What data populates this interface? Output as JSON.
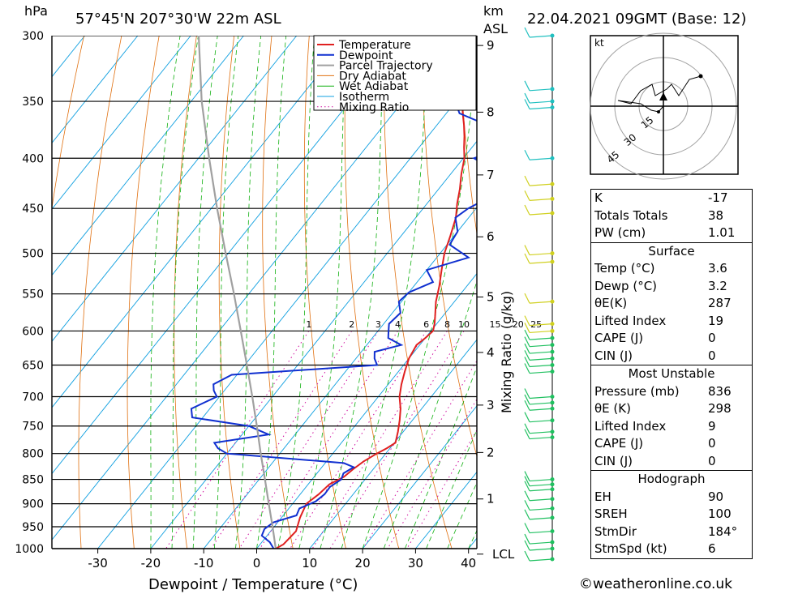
{
  "header": {
    "location": "57°45'N 207°30'W 22m ASL",
    "datetime": "22.04.2021 09GMT (Base: 12)",
    "hpa_label": "hPa",
    "km_label": "km",
    "asl_label": "ASL"
  },
  "credit": "©weatheronline.co.uk",
  "colors": {
    "temperature": "#e02020",
    "dewpoint": "#1030d0",
    "parcel": "#a0a0a0",
    "dry_adiabat": "#e07010",
    "wet_adiabat": "#10b010",
    "isotherm": "#10a0e0",
    "mixing_ratio": "#d010a0"
  },
  "chart_data": {
    "type": "line",
    "title": "",
    "xlabel": "Dewpoint / Temperature (°C)",
    "ylabel": "hPa",
    "y2label": "Mixing Ratio (g/kg)",
    "x_ticks": [
      -30,
      -20,
      -10,
      0,
      10,
      20,
      30,
      40
    ],
    "pressure_ticks": [
      300,
      350,
      400,
      450,
      500,
      550,
      600,
      650,
      700,
      750,
      800,
      850,
      900,
      950,
      1000
    ],
    "km_ticks": [
      "9",
      "8",
      "7",
      "6",
      "5",
      "4",
      "3",
      "2",
      "1",
      "LCL"
    ],
    "mixing_ratio_labels": [
      "1",
      "2",
      "3",
      "4",
      "6",
      "8",
      "10",
      "15",
      "20",
      "25"
    ],
    "legend": [
      "Temperature",
      "Dewpoint",
      "Parcel Trajectory",
      "Dry Adiabat",
      "Wet Adiabat",
      "Isotherm",
      "Mixing Ratio"
    ],
    "legend_position": "top-right",
    "series": [
      {
        "name": "Temperature",
        "p": [
          1000,
          990,
          960,
          930,
          900,
          880,
          860,
          845,
          830,
          815,
          800,
          790,
          780,
          760,
          740,
          720,
          700,
          680,
          660,
          640,
          620,
          610,
          600,
          590,
          580,
          560,
          540,
          520,
          500,
          480,
          460,
          445,
          430,
          415,
          400,
          390,
          380,
          370,
          360,
          350,
          340,
          330,
          320,
          310,
          300
        ],
        "t": [
          3.6,
          4.4,
          4.8,
          3.5,
          2.6,
          3.5,
          4.0,
          5.6,
          6.2,
          7.0,
          8.3,
          9.4,
          10.2,
          9.0,
          7.6,
          6.0,
          4.0,
          2.5,
          1.2,
          0.0,
          -0.6,
          0.0,
          0.4,
          -0.4,
          -1.4,
          -3.5,
          -5.2,
          -7.2,
          -9.2,
          -10.7,
          -12.4,
          -14.3,
          -16.0,
          -18.0,
          -19.8,
          -21.5,
          -23.1,
          -24.9,
          -26.9,
          -28.8,
          -30.9,
          -33.0,
          -35.2,
          -37.3,
          -38.5
        ]
      },
      {
        "name": "Dewpoint",
        "p": [
          1000,
          985,
          970,
          955,
          940,
          925,
          910,
          895,
          880,
          865,
          850,
          838,
          826,
          818,
          800,
          790,
          780,
          765,
          750,
          735,
          720,
          710,
          700,
          690,
          680,
          665,
          650,
          640,
          630,
          620,
          610,
          600,
          590,
          575,
          560,
          548,
          535,
          520,
          505,
          490,
          475,
          460,
          450,
          440,
          430,
          420,
          410,
          400,
          390,
          380,
          370,
          360,
          345,
          330,
          318,
          305,
          300
        ],
        "t": [
          3.2,
          1.5,
          -1.0,
          -1.5,
          -0.8,
          2.5,
          2.0,
          4.0,
          4.6,
          4.5,
          5.5,
          5.0,
          6.0,
          3.5,
          -20.0,
          -22.5,
          -24.0,
          -15.0,
          -20.0,
          -32.0,
          -33.5,
          -32.0,
          -30.5,
          -32.0,
          -33.0,
          -31.0,
          -5.0,
          -6.5,
          -7.5,
          -3.5,
          -7.0,
          -8.0,
          -9.0,
          -8.5,
          -10.5,
          -10.0,
          -7.0,
          -10.0,
          -4.0,
          -9.5,
          -10.0,
          -12.5,
          -11.5,
          -9.5,
          -10.5,
          -7.5,
          -13.0,
          -18.0,
          -13.5,
          -18.0,
          -20.5,
          -27.5,
          -31.5,
          -29.5,
          -32.5,
          -31.5,
          -33.0
        ]
      },
      {
        "name": "Parcel Trajectory",
        "p": [
          1000,
          950,
          900,
          850,
          800,
          750,
          700,
          650,
          600,
          550,
          500,
          450,
          400,
          350,
          300
        ],
        "t": [
          3.6,
          -0.3,
          -4.5,
          -8.9,
          -13.6,
          -18.5,
          -23.8,
          -29.6,
          -35.9,
          -42.8,
          -50.5,
          -58.9,
          -68.0,
          -78.0,
          -88.5
        ]
      }
    ],
    "km_levels_hpa": [
      307,
      359,
      416,
      481,
      554,
      631,
      714,
      798,
      890,
      1013
    ],
    "wind_barb_levels_hpa": [
      300,
      340,
      350,
      355,
      400,
      425,
      440,
      455,
      500,
      510,
      560,
      590,
      600,
      610,
      620,
      630,
      640,
      650,
      660,
      700,
      710,
      720,
      740,
      760,
      770,
      850,
      860,
      870,
      890,
      910,
      930,
      960,
      985,
      1000,
      1025
    ]
  },
  "hodograph": {
    "unit_label": "kt",
    "ring_labels": [
      "15",
      "30",
      "45"
    ]
  },
  "indices": {
    "k_label": "K",
    "k_value": "-17",
    "tt_label": "Totals Totals",
    "tt_value": "38",
    "pw_label": "PW (cm)",
    "pw_value": "1.01",
    "surface": {
      "title": "Surface",
      "rows": [
        {
          "label": "Temp (°C)",
          "value": "3.6"
        },
        {
          "label": "Dewp (°C)",
          "value": "3.2"
        },
        {
          "label": "θE(K)",
          "value": "287"
        },
        {
          "label": "Lifted Index",
          "value": "19"
        },
        {
          "label": "CAPE (J)",
          "value": "0"
        },
        {
          "label": "CIN (J)",
          "value": "0"
        }
      ]
    },
    "most_unstable": {
      "title": "Most Unstable",
      "rows": [
        {
          "label": "Pressure (mb)",
          "value": "836"
        },
        {
          "label": "θE (K)",
          "value": "298"
        },
        {
          "label": "Lifted Index",
          "value": "9"
        },
        {
          "label": "CAPE (J)",
          "value": "0"
        },
        {
          "label": "CIN (J)",
          "value": "0"
        }
      ]
    },
    "hodograph": {
      "title": "Hodograph",
      "rows": [
        {
          "label": "EH",
          "value": "90"
        },
        {
          "label": "SREH",
          "value": "100"
        },
        {
          "label": "StmDir",
          "value": "184°"
        },
        {
          "label": "StmSpd (kt)",
          "value": "6"
        }
      ]
    }
  }
}
